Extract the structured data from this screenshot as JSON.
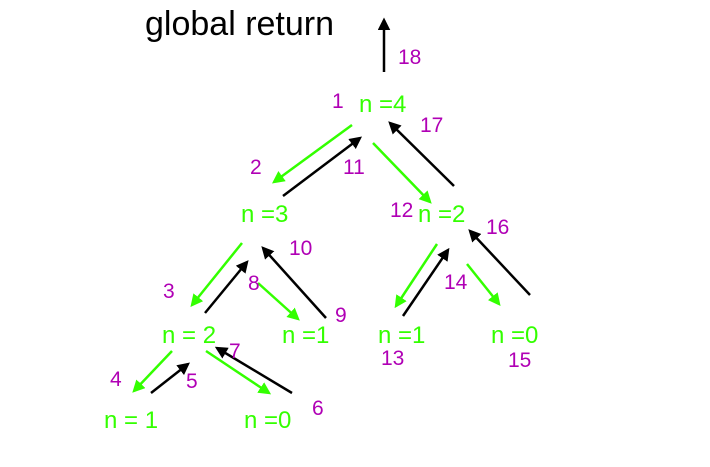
{
  "title": "global return",
  "colors": {
    "call": "#33ff00",
    "return": "#000000",
    "step": "#b000b5",
    "title": "#000000"
  },
  "nodes": [
    {
      "id": "n4",
      "label": "n =4"
    },
    {
      "id": "n3",
      "label": "n =3"
    },
    {
      "id": "n2r",
      "label": "n =2"
    },
    {
      "id": "n2l",
      "label": "n = 2"
    },
    {
      "id": "n1a",
      "label": "n =1"
    },
    {
      "id": "n1b",
      "label": "n =1"
    },
    {
      "id": "n0a",
      "label": "n =0"
    },
    {
      "id": "n1c",
      "label": "n = 1"
    },
    {
      "id": "n0b",
      "label": "n =0"
    }
  ],
  "steps": [
    "1",
    "2",
    "3",
    "4",
    "5",
    "6",
    "7",
    "8",
    "9",
    "10",
    "11",
    "12",
    "13",
    "14",
    "15",
    "16",
    "17",
    "18"
  ],
  "edges": [
    {
      "from": "n4",
      "to": "n3",
      "kind": "call",
      "step": "2"
    },
    {
      "from": "n3",
      "to": "n2l",
      "kind": "call",
      "step": "3"
    },
    {
      "from": "n2l",
      "to": "n1c",
      "kind": "call",
      "step": "4"
    },
    {
      "from": "n1c",
      "to": "n2l",
      "kind": "return",
      "step": "5"
    },
    {
      "from": "n2l",
      "to": "n0b",
      "kind": "call",
      "step": "6"
    },
    {
      "from": "n0b",
      "to": "n2l",
      "kind": "return",
      "step": "7"
    },
    {
      "from": "n2l",
      "to": "n3",
      "kind": "return",
      "step": "8"
    },
    {
      "from": "n3",
      "to": "n1a",
      "kind": "call",
      "step": "9"
    },
    {
      "from": "n1a",
      "to": "n3",
      "kind": "return",
      "step": "10"
    },
    {
      "from": "n3",
      "to": "n4",
      "kind": "return",
      "step": "11"
    },
    {
      "from": "n4",
      "to": "n2r",
      "kind": "call",
      "step": "12"
    },
    {
      "from": "n2r",
      "to": "n1b",
      "kind": "call",
      "step": "13"
    },
    {
      "from": "n1b",
      "to": "n2r",
      "kind": "return",
      "step": "14"
    },
    {
      "from": "n2r",
      "to": "n0a",
      "kind": "call",
      "step": "15"
    },
    {
      "from": "n0a",
      "to": "n2r",
      "kind": "return",
      "step": "16"
    },
    {
      "from": "n2r",
      "to": "n4",
      "kind": "return",
      "step": "17"
    },
    {
      "from": "n4",
      "to": "global",
      "kind": "return",
      "step": "18"
    }
  ]
}
